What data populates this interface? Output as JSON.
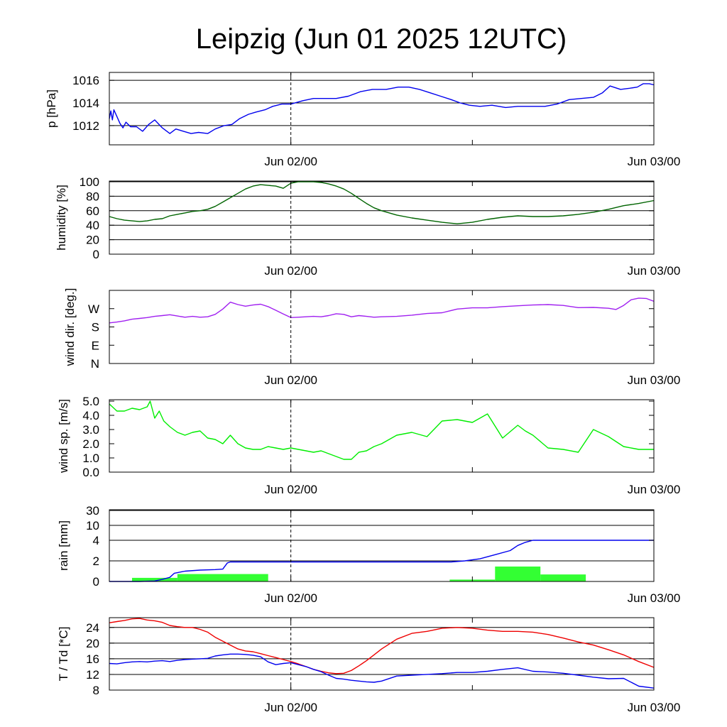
{
  "title": "Leipzig (Jun 01 2025 12UTC)",
  "chart_data": [
    {
      "type": "line",
      "id": "pressure",
      "ylabel": "p [hPa]",
      "ylim": [
        1010.3,
        1016.7
      ],
      "yticks": [
        1012,
        1014,
        1016
      ],
      "ytick_labels": [
        "1012",
        "1014",
        "1016"
      ],
      "grid": true,
      "xlim_hours": [
        0,
        36
      ],
      "xtick_hours": [
        12,
        36
      ],
      "xtick_labels": [
        "Jun 02/00",
        "Jun 03/00"
      ],
      "series": [
        {
          "color": "#0000ee",
          "x": [
            0,
            0.1,
            0.2,
            0.3,
            0.5,
            0.7,
            0.9,
            1.1,
            1.4,
            1.8,
            2.2,
            2.6,
            3,
            3.5,
            4,
            4.4,
            4.9,
            5.4,
            5.9,
            6.5,
            7,
            7.6,
            8.1,
            8.6,
            9.2,
            9.7,
            10.3,
            10.8,
            11.4,
            12,
            12.8,
            13.5,
            14.3,
            15,
            15.8,
            16.6,
            17.4,
            18.3,
            19.1,
            19.8,
            20.5,
            21.2,
            21.9,
            22.6,
            23.2,
            23.8,
            24.5,
            25.3,
            26.2,
            27,
            27.9,
            28.8,
            29.6,
            30.4,
            31.2,
            32,
            32.6,
            33.1,
            33.8,
            34.4,
            34.9,
            35.3,
            35.7,
            36
          ],
          "y": [
            1012.6,
            1013.3,
            1012.5,
            1013.4,
            1012.8,
            1012.2,
            1011.8,
            1012.3,
            1011.9,
            1011.9,
            1011.5,
            1012.1,
            1012.5,
            1011.8,
            1011.3,
            1011.7,
            1011.5,
            1011.3,
            1011.4,
            1011.3,
            1011.7,
            1012,
            1012.1,
            1012.6,
            1013,
            1013.2,
            1013.4,
            1013.7,
            1013.9,
            1013.9,
            1014.2,
            1014.4,
            1014.4,
            1014.4,
            1014.6,
            1015,
            1015.2,
            1015.2,
            1015.4,
            1015.4,
            1015.2,
            1014.9,
            1014.6,
            1014.3,
            1014,
            1013.8,
            1013.7,
            1013.8,
            1013.6,
            1013.7,
            1013.7,
            1013.7,
            1013.9,
            1014.3,
            1014.4,
            1014.5,
            1014.9,
            1015.5,
            1015.2,
            1015.3,
            1015.4,
            1015.7,
            1015.7,
            1015.6
          ]
        }
      ]
    },
    {
      "type": "line",
      "id": "humidity",
      "ylabel": "humidity [%]",
      "ylim": [
        0,
        101
      ],
      "yticks": [
        0,
        20,
        40,
        60,
        80,
        100
      ],
      "ytick_labels": [
        "0",
        "20",
        "40",
        "60",
        "80",
        "100"
      ],
      "grid": true,
      "xlim_hours": [
        0,
        36
      ],
      "xtick_hours": [
        12,
        36
      ],
      "xtick_labels": [
        "Jun 02/00",
        "Jun 03/00"
      ],
      "series": [
        {
          "color": "#006400",
          "x": [
            0,
            0.5,
            1,
            1.5,
            2,
            2.5,
            3,
            3.5,
            4,
            4.5,
            5,
            5.5,
            6,
            6.5,
            7,
            7.5,
            8,
            8.5,
            9,
            9.5,
            10,
            10.5,
            11,
            11.5,
            12,
            12.5,
            13,
            13.5,
            14,
            14.5,
            15,
            15.5,
            16,
            16.5,
            17,
            17.5,
            18,
            19,
            20,
            21,
            22,
            23,
            24,
            25,
            26,
            27,
            28,
            29,
            30,
            31,
            32,
            33,
            34,
            35,
            36
          ],
          "y": [
            52,
            49,
            47,
            46,
            45,
            46,
            48,
            49,
            53,
            55,
            57,
            59,
            60,
            62,
            66,
            72,
            78,
            84,
            90,
            94,
            96,
            95,
            94,
            91,
            98,
            100,
            100,
            100,
            99,
            97,
            94,
            90,
            84,
            77,
            70,
            64,
            60,
            54,
            50,
            47,
            44,
            42,
            44,
            48,
            51,
            53,
            52,
            52,
            53,
            55,
            58,
            62,
            67,
            70,
            74
          ]
        }
      ]
    },
    {
      "type": "line",
      "id": "wind_direction",
      "ylabel": "wind dir. [deg.]",
      "ylim": [
        0,
        360
      ],
      "yticks": [
        0,
        90,
        180,
        270
      ],
      "ytick_labels": [
        "N",
        "E",
        "S",
        "W"
      ],
      "grid": false,
      "xlim_hours": [
        0,
        36
      ],
      "xtick_hours": [
        12,
        36
      ],
      "xtick_labels": [
        "Jun 02/00",
        "Jun 03/00"
      ],
      "series": [
        {
          "color": "#a020f0",
          "x": [
            0,
            0.5,
            1,
            1.5,
            2,
            2.5,
            3,
            3.5,
            4,
            4.5,
            5,
            5.5,
            6,
            6.5,
            7,
            7.5,
            8,
            8.5,
            9,
            9.5,
            10,
            10.5,
            11,
            11.5,
            12,
            12.5,
            13,
            13.5,
            14,
            14.5,
            15,
            15.5,
            16,
            16.5,
            17,
            17.5,
            18,
            19,
            20,
            21,
            22,
            23,
            24,
            25,
            26,
            27,
            28,
            29,
            30,
            31,
            32,
            33,
            33.5,
            34,
            34.5,
            35,
            35.5,
            36
          ],
          "y": [
            200,
            204,
            210,
            218,
            222,
            226,
            232,
            236,
            240,
            234,
            228,
            232,
            228,
            230,
            242,
            268,
            302,
            290,
            282,
            288,
            292,
            280,
            262,
            244,
            226,
            228,
            230,
            232,
            230,
            236,
            245,
            242,
            230,
            236,
            232,
            228,
            230,
            232,
            238,
            246,
            250,
            268,
            274,
            274,
            280,
            284,
            288,
            290,
            286,
            275,
            276,
            272,
            266,
            286,
            314,
            322,
            320,
            306
          ]
        }
      ]
    },
    {
      "type": "line",
      "id": "wind_speed",
      "ylabel": "wind sp. [m/s]",
      "ylim": [
        0,
        5.1
      ],
      "yticks": [
        0,
        1,
        2,
        3,
        4,
        5
      ],
      "ytick_labels": [
        "0.0",
        "1.0",
        "2.0",
        "3.0",
        "4.0",
        "5.0"
      ],
      "grid": false,
      "xlim_hours": [
        0,
        36
      ],
      "xtick_hours": [
        12,
        36
      ],
      "xtick_labels": [
        "Jun 02/00",
        "Jun 03/00"
      ],
      "series": [
        {
          "color": "#00ee00",
          "x": [
            0,
            0.5,
            1,
            1.5,
            2,
            2.5,
            2.7,
            3,
            3.3,
            3.6,
            4,
            4.5,
            5,
            5.5,
            6,
            6.5,
            7,
            7.5,
            8,
            8.5,
            9,
            9.5,
            10,
            10.5,
            11,
            11.5,
            12,
            12.5,
            13,
            13.5,
            14,
            14.5,
            15,
            15.5,
            16,
            16.5,
            17,
            17.5,
            18,
            19,
            20,
            21,
            22,
            23,
            24,
            25,
            26,
            27,
            27.5,
            28,
            29,
            30,
            31,
            32,
            33,
            34,
            35,
            36
          ],
          "y": [
            4.8,
            4.3,
            4.3,
            4.5,
            4.4,
            4.6,
            5.0,
            3.8,
            4.3,
            3.6,
            3.2,
            2.8,
            2.6,
            2.8,
            2.9,
            2.4,
            2.3,
            2.0,
            2.6,
            2.0,
            1.7,
            1.6,
            1.6,
            1.8,
            1.7,
            1.6,
            1.7,
            1.6,
            1.5,
            1.4,
            1.5,
            1.3,
            1.1,
            0.9,
            0.9,
            1.4,
            1.5,
            1.8,
            2.0,
            2.6,
            2.8,
            2.5,
            3.6,
            3.7,
            3.5,
            4.1,
            2.4,
            3.3,
            2.9,
            2.6,
            1.7,
            1.6,
            1.4,
            3.0,
            2.5,
            1.8,
            1.6,
            1.6
          ]
        }
      ]
    },
    {
      "type": "bar",
      "id": "rain",
      "ylabel": "rain [mm]",
      "yticks": [
        0,
        2,
        4,
        10,
        30
      ],
      "ytick_labels": [
        "0",
        "2",
        "4",
        "10",
        "30"
      ],
      "grid": true,
      "xlim_hours": [
        0,
        36
      ],
      "xtick_hours": [
        12,
        36
      ],
      "xtick_labels": [
        "Jun 02/00",
        "Jun 03/00"
      ],
      "bars": {
        "color": "#33ff33",
        "bins": [
          [
            1.5,
            4.5,
            0.35
          ],
          [
            4.5,
            10.5,
            0.72
          ],
          [
            22.5,
            25.5,
            0.18
          ],
          [
            25.5,
            28.5,
            1.45
          ],
          [
            28.5,
            31.5,
            0.68
          ]
        ]
      },
      "series": [
        {
          "name_visible": false,
          "color": "#0000ee",
          "x": [
            0,
            2,
            3,
            3.5,
            4,
            4.3,
            5,
            6,
            7,
            7.5,
            7.8,
            8,
            9,
            12,
            16,
            20,
            22.6,
            23.5,
            24.5,
            25.5,
            26.5,
            27,
            27.5,
            28,
            28.5,
            30,
            33,
            36
          ],
          "y": [
            0,
            0,
            0.05,
            0.2,
            0.4,
            0.8,
            1.0,
            1.1,
            1.15,
            1.2,
            1.8,
            1.9,
            1.9,
            1.9,
            1.9,
            1.9,
            1.9,
            2.0,
            2.2,
            2.6,
            3.0,
            3.5,
            3.8,
            4.0,
            4.0,
            4.0,
            4.0,
            4.0
          ]
        }
      ]
    },
    {
      "type": "line",
      "id": "temperature",
      "ylabel": "T / Td [*C]",
      "ylim": [
        8,
        26.5
      ],
      "yticks": [
        8,
        12,
        16,
        20,
        24
      ],
      "ytick_labels": [
        "8",
        "12",
        "16",
        "20",
        "24"
      ],
      "grid": true,
      "xlim_hours": [
        0,
        36
      ],
      "xtick_hours": [
        12,
        36
      ],
      "xtick_labels": [
        "Jun 02/00",
        "Jun 03/00"
      ],
      "series": [
        {
          "color": "#ee0000",
          "x": [
            0,
            0.5,
            1,
            1.5,
            2,
            2.5,
            3,
            3.5,
            4,
            4.5,
            5,
            5.5,
            6,
            6.5,
            7,
            7.5,
            8,
            8.5,
            9,
            9.5,
            10,
            10.5,
            11,
            11.5,
            12,
            12.5,
            13,
            13.5,
            14,
            14.5,
            15,
            15.5,
            16,
            16.5,
            17,
            17.5,
            18,
            19,
            20,
            21,
            22,
            23,
            24,
            25,
            26,
            27,
            28,
            29,
            30,
            31,
            32,
            33,
            34,
            35,
            36
          ],
          "y": [
            25.2,
            25.5,
            25.8,
            26.2,
            26.3,
            25.9,
            25.7,
            25.3,
            24.5,
            24.2,
            24.0,
            24.0,
            23.5,
            22.8,
            21.5,
            20.5,
            19.5,
            18.5,
            18.0,
            17.8,
            17.3,
            16.8,
            16.3,
            15.8,
            15.3,
            14.7,
            14.0,
            13.3,
            12.8,
            12.4,
            12.2,
            12.3,
            13.0,
            14.2,
            15.5,
            17.0,
            18.5,
            21.0,
            22.5,
            23.0,
            23.8,
            24.0,
            23.8,
            23.3,
            23.0,
            23.0,
            22.8,
            22.2,
            21.3,
            20.3,
            19.5,
            18.3,
            17.0,
            15.3,
            13.8
          ]
        },
        {
          "color": "#0000ee",
          "x": [
            0,
            0.5,
            1,
            1.5,
            2,
            2.5,
            3,
            3.5,
            4,
            4.5,
            5,
            5.5,
            6,
            6.5,
            7,
            7.5,
            8,
            8.5,
            9,
            9.5,
            10,
            10.5,
            11,
            11.5,
            12,
            12.5,
            13,
            13.5,
            14,
            14.5,
            15,
            15.5,
            16,
            16.5,
            17,
            17.5,
            18,
            19,
            20,
            21,
            22,
            23,
            24,
            25,
            26,
            27,
            28,
            29,
            30,
            31,
            32,
            33,
            34,
            35,
            36
          ],
          "y": [
            14.8,
            14.7,
            15.0,
            15.2,
            15.3,
            15.2,
            15.4,
            15.5,
            15.3,
            15.6,
            15.8,
            15.9,
            16.0,
            16.1,
            16.7,
            17.0,
            17.2,
            17.2,
            17.1,
            16.9,
            16.5,
            15.2,
            14.5,
            14.8,
            15.0,
            14.5,
            14.0,
            13.3,
            12.7,
            11.8,
            11.0,
            10.8,
            10.5,
            10.3,
            10.1,
            10.0,
            10.3,
            11.6,
            11.8,
            12.0,
            12.2,
            12.5,
            12.5,
            12.8,
            13.3,
            13.7,
            12.8,
            12.6,
            12.3,
            11.8,
            11.3,
            10.9,
            11.0,
            9.0,
            8.5
          ]
        }
      ]
    }
  ]
}
